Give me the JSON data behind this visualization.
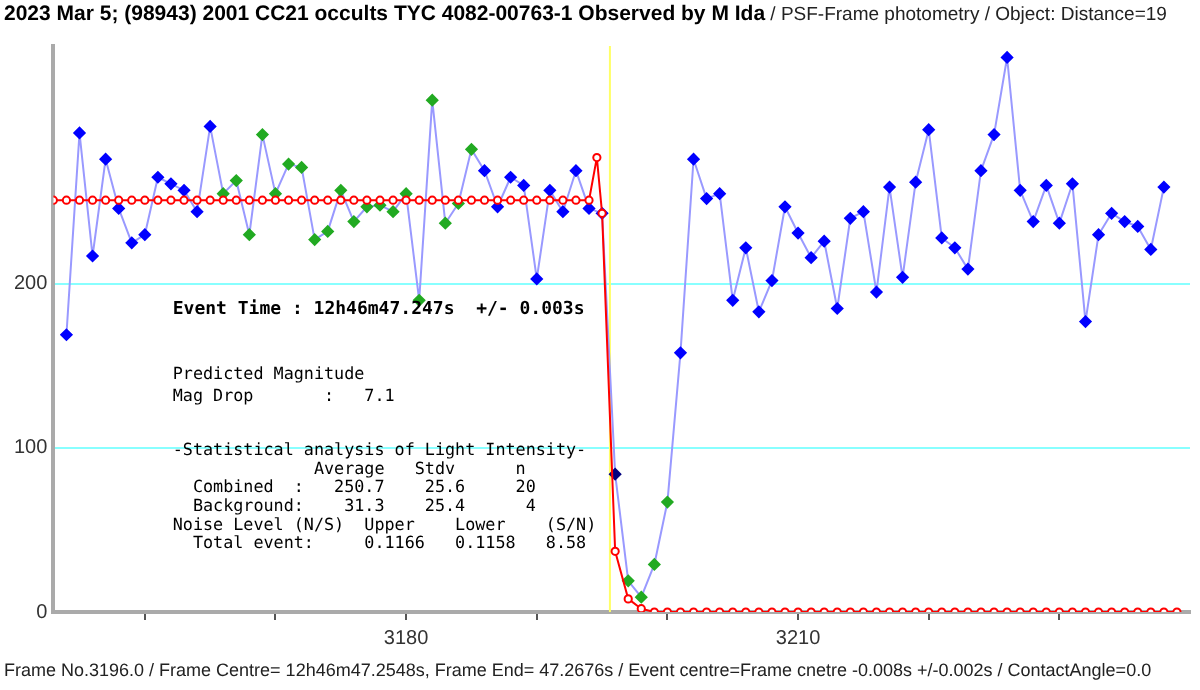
{
  "chart_data": {
    "type": "line",
    "title": "2023 Mar 5; (98943) 2001 CC21 occults TYC 4082-00763-1 Observed by M Ida",
    "subtitle": "/ PSF-Frame photometry /  Object: Distance=19",
    "x": [
      3154,
      3155,
      3156,
      3157,
      3158,
      3159,
      3160,
      3161,
      3162,
      3163,
      3164,
      3165,
      3166,
      3167,
      3168,
      3169,
      3170,
      3171,
      3172,
      3173,
      3174,
      3175,
      3176,
      3177,
      3178,
      3179,
      3180,
      3181,
      3182,
      3183,
      3184,
      3185,
      3186,
      3187,
      3188,
      3189,
      3190,
      3191,
      3192,
      3193,
      3194,
      3195,
      3196,
      3197,
      3198,
      3199,
      3200,
      3201,
      3202,
      3203,
      3204,
      3205,
      3206,
      3207,
      3208,
      3209,
      3210,
      3211,
      3212,
      3213,
      3214,
      3215,
      3216,
      3217,
      3218,
      3219,
      3220,
      3221,
      3222,
      3223,
      3224,
      3225,
      3226,
      3227,
      3228,
      3229,
      3230,
      3231,
      3232,
      3233,
      3234,
      3235,
      3236,
      3237,
      3238
    ],
    "series": [
      {
        "color": "#9999ff",
        "marker": "diamond",
        "values": [
          169,
          292,
          217,
          276,
          246,
          225,
          230,
          265,
          261,
          257,
          244,
          296,
          255,
          263,
          230,
          291,
          255,
          273,
          271,
          227,
          232,
          257,
          238,
          247,
          248,
          244,
          255,
          190,
          312,
          237,
          249,
          282,
          269,
          247,
          265,
          260,
          203,
          257,
          244,
          269,
          246,
          243,
          84,
          19,
          9,
          29,
          67,
          158,
          276,
          252,
          255,
          190,
          222,
          183,
          202,
          247,
          231,
          216,
          226,
          185,
          240,
          244,
          195,
          259,
          204,
          262,
          294,
          228,
          222,
          209,
          269,
          291,
          338,
          257,
          238,
          260,
          237,
          261,
          177,
          230,
          243,
          238,
          235,
          221,
          259
        ],
        "colors": [
          "#0000ff",
          "#0000ff",
          "#0000ff",
          "#0000ff",
          "#0000ff",
          "#0000ff",
          "#0000ff",
          "#0000ff",
          "#0000ff",
          "#0000ff",
          "#0000ff",
          "#0000ff",
          "#22aa22",
          "#22aa22",
          "#22aa22",
          "#22aa22",
          "#22aa22",
          "#22aa22",
          "#22aa22",
          "#22aa22",
          "#22aa22",
          "#22aa22",
          "#22aa22",
          "#22aa22",
          "#22aa22",
          "#22aa22",
          "#22aa22",
          "#22aa22",
          "#22aa22",
          "#22aa22",
          "#22aa22",
          "#22aa22",
          "#0000ff",
          "#0000ff",
          "#0000ff",
          "#0000ff",
          "#0000ff",
          "#0000ff",
          "#0000ff",
          "#0000ff",
          "#0000ff",
          "#0000ff",
          "#000080",
          "#22aa22",
          "#22aa22",
          "#22aa22",
          "#22aa22",
          "#0000ff",
          "#0000ff",
          "#0000ff",
          "#0000ff",
          "#0000ff",
          "#0000ff",
          "#0000ff",
          "#0000ff",
          "#0000ff",
          "#0000ff",
          "#0000ff",
          "#0000ff",
          "#0000ff",
          "#0000ff",
          "#0000ff",
          "#0000ff",
          "#0000ff",
          "#0000ff",
          "#0000ff",
          "#0000ff",
          "#0000ff",
          "#0000ff",
          "#0000ff",
          "#0000ff",
          "#0000ff",
          "#0000ff",
          "#0000ff",
          "#0000ff",
          "#0000ff",
          "#0000ff",
          "#0000ff",
          "#0000ff",
          "#0000ff",
          "#0000ff",
          "#0000ff",
          "#0000ff",
          "#0000ff",
          "#0000ff"
        ]
      },
      {
        "color": "#ff0000",
        "marker": "circle",
        "x": [
          3153,
          3154,
          3155,
          3156,
          3157,
          3158,
          3159,
          3160,
          3161,
          3162,
          3163,
          3164,
          3165,
          3166,
          3167,
          3168,
          3169,
          3170,
          3171,
          3172,
          3173,
          3174,
          3175,
          3176,
          3177,
          3178,
          3179,
          3180,
          3181,
          3182,
          3183,
          3184,
          3185,
          3186,
          3187,
          3188,
          3189,
          3190,
          3191,
          3192,
          3193,
          3194,
          3194.6,
          3195,
          3196,
          3197,
          3198,
          3199,
          3200,
          3201,
          3202,
          3203,
          3204,
          3205,
          3206,
          3207,
          3208,
          3209,
          3210,
          3211,
          3212,
          3213,
          3214,
          3215,
          3216,
          3217,
          3218,
          3219,
          3220,
          3221,
          3222,
          3223,
          3224,
          3225,
          3226,
          3227,
          3228,
          3229,
          3230,
          3231,
          3232,
          3233,
          3234,
          3235,
          3236,
          3237,
          3238,
          3239
        ],
        "values": [
          251,
          251,
          251,
          251,
          251,
          251,
          251,
          251,
          251,
          251,
          251,
          251,
          251,
          251,
          251,
          251,
          251,
          251,
          251,
          251,
          251,
          251,
          251,
          251,
          251,
          251,
          251,
          251,
          251,
          251,
          251,
          251,
          251,
          251,
          251,
          251,
          251,
          251,
          251,
          251,
          251,
          251,
          277,
          243,
          37,
          8,
          2,
          0,
          0,
          0,
          0,
          0,
          0,
          0,
          0,
          0,
          0,
          0,
          0,
          0,
          0,
          0,
          0,
          0,
          0,
          0,
          0,
          0,
          0,
          0,
          0,
          0,
          0,
          0,
          0,
          0,
          0,
          0,
          0,
          0,
          0,
          0,
          0,
          0,
          0,
          0,
          0,
          0
        ]
      }
    ],
    "xlim": [
      3153,
      3240
    ],
    "xticks": [
      {
        "value": 3160,
        "label": null
      },
      {
        "value": 3170,
        "label": null
      },
      3180,
      {
        "value": 3190,
        "label": null
      },
      {
        "value": 3200,
        "label": null
      },
      3210,
      {
        "value": 3220,
        "label": null
      },
      {
        "value": 3230,
        "label": null
      }
    ],
    "ylim": [
      0,
      345
    ],
    "yticks": [
      0,
      100,
      200
    ],
    "grid": "y",
    "ref_lines": [
      {
        "axis": "x",
        "value": 3195.6,
        "color": "#ffff66"
      }
    ],
    "annotations": [
      "Event Time : 12h46m47.247s  +/- 0.003s",
      "Predicted Magnitude",
      "Mag Drop       :   7.1",
      "-Statistical analysis of Light Intensity-",
      "              Average   Stdv      n",
      "  Combined  :   250.7    25.6     20",
      "  Background:    31.3    25.4      4",
      "Noise Level (N/S)  Upper    Lower    (S/N)",
      "  Total event:     0.1166   0.1158   8.58",
      "Frame No.3196.0 / Frame Centre= 12h46m47.2548s,  Frame End= 47.2676s / Event centre=Frame cnetre -0.008s +/-0.002s / ContactAngle=0.0"
    ]
  }
}
